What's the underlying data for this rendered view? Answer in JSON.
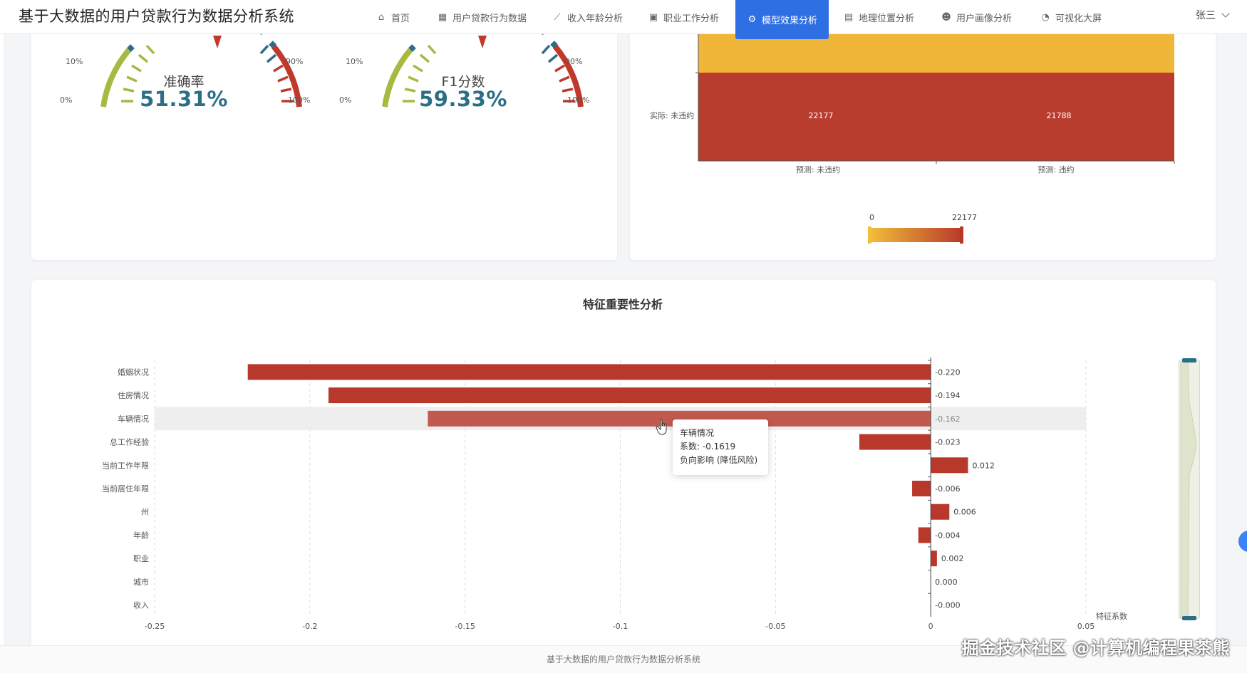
{
  "header": {
    "title": "基于大数据的用户贷款行为数据分析系统",
    "nav": [
      {
        "label": "首页",
        "icon": "home-icon",
        "active": false
      },
      {
        "label": "用户贷款行为数据",
        "icon": "table-icon",
        "active": false
      },
      {
        "label": "收入年龄分析",
        "icon": "line-chart-icon",
        "active": false
      },
      {
        "label": "职业工作分析",
        "icon": "briefcase-icon",
        "active": false
      },
      {
        "label": "模型效果分析",
        "icon": "gears-icon",
        "active": true
      },
      {
        "label": "地理位置分析",
        "icon": "map-icon",
        "active": false
      },
      {
        "label": "用户画像分析",
        "icon": "users-icon",
        "active": false
      },
      {
        "label": "可视化大屏",
        "icon": "pie-chart-icon",
        "active": false
      }
    ],
    "user": "张三"
  },
  "gauges": [
    {
      "label": "准确率",
      "value": "51.31%",
      "ticks": [
        "0%",
        "10%",
        "90%",
        "100%"
      ]
    },
    {
      "label": "F1分数",
      "value": "59.33%",
      "ticks": [
        "0%",
        "10%",
        "90%",
        "100%"
      ]
    }
  ],
  "confusion": {
    "row_label": "实际: 未违约",
    "col_labels": [
      "预测: 未违约",
      "预测: 违约"
    ],
    "values": [
      "22177",
      "21788"
    ],
    "scale_min": "0",
    "scale_max": "22177"
  },
  "chart_data": {
    "type": "bar",
    "title": "特征重要性分析",
    "xlabel": "特征系数",
    "categories": [
      "婚姻状况",
      "住房情况",
      "车辆情况",
      "总工作经验",
      "当前工作年限",
      "当前居住年限",
      "州",
      "年龄",
      "职业",
      "城市",
      "收入"
    ],
    "values": [
      -0.22,
      -0.194,
      -0.162,
      -0.023,
      0.012,
      -0.006,
      0.006,
      -0.004,
      0.002,
      0.0,
      -0.0
    ],
    "value_labels": [
      "-0.220",
      "-0.194",
      "-0.162",
      "-0.023",
      "0.012",
      "-0.006",
      "0.006",
      "-0.004",
      "0.002",
      "0.000",
      "-0.000"
    ],
    "xlim": [
      -0.25,
      0.05
    ],
    "xticks": [
      "-0.25",
      "-0.2",
      "-0.15",
      "-0.1",
      "-0.05",
      "0",
      "0.05"
    ],
    "highlight_index": 2,
    "bar_color": "#b8392c"
  },
  "tooltip": {
    "name": "车辆情况",
    "coef_label": "系数: ",
    "coef_value": "-0.1619",
    "effect": "负向影响 (降低风险)"
  },
  "footer": {
    "text": "基于大数据的用户贷款行为数据分析系统"
  },
  "watermark": "掘金技术社区 @计算机编程果茶熊"
}
